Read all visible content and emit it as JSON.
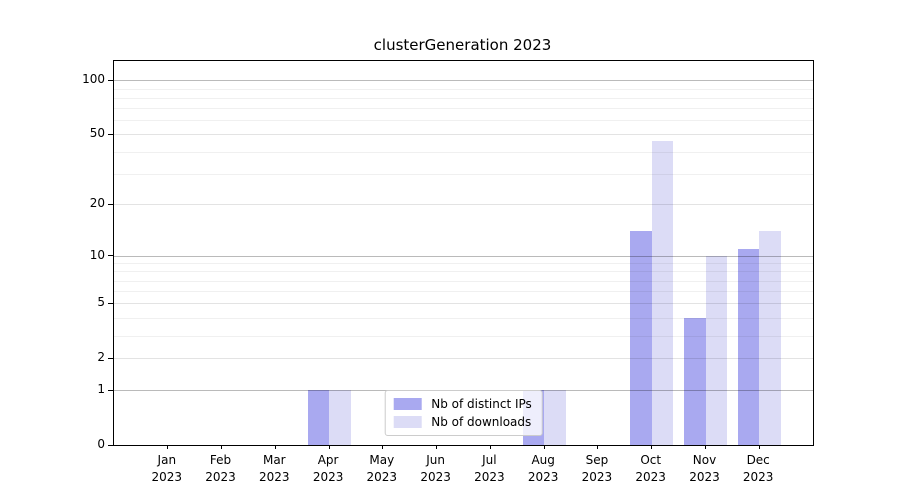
{
  "title": "clusterGeneration 2023",
  "chart_data": {
    "type": "bar",
    "title": "clusterGeneration 2023",
    "categories": [
      "Jan",
      "Feb",
      "Mar",
      "Apr",
      "May",
      "Jun",
      "Jul",
      "Aug",
      "Sep",
      "Oct",
      "Nov",
      "Dec"
    ],
    "year": "2023",
    "series": [
      {
        "name": "Nb of distinct IPs",
        "color": "#a9a9f0",
        "values": [
          0,
          0,
          0,
          1,
          0,
          0,
          0,
          1,
          0,
          14,
          4,
          11
        ]
      },
      {
        "name": "Nb of downloads",
        "color": "#dcdcf6",
        "values": [
          0,
          0,
          0,
          1,
          0,
          0,
          0,
          1,
          0,
          46,
          10,
          14
        ]
      }
    ],
    "xlabel": "",
    "ylabel": "",
    "yscale": "log1p",
    "ylim": [
      0,
      128
    ],
    "yticks": [
      0,
      1,
      2,
      5,
      10,
      20,
      50,
      100
    ],
    "ytick_emphasis": [
      1,
      10,
      100
    ],
    "minor_gridlines": [
      3,
      4,
      6,
      7,
      8,
      9,
      30,
      40,
      60,
      70,
      80,
      90
    ],
    "grid": true,
    "legend_position": "lower center"
  }
}
